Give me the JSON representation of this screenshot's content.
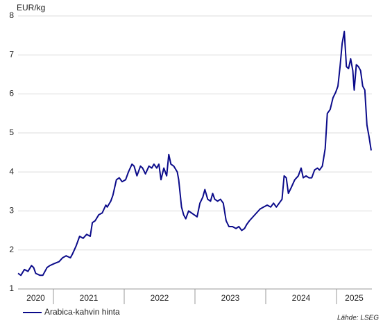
{
  "chart_data": {
    "type": "line",
    "y_label": "EUR/kg",
    "x": [
      2020.5,
      2020.54,
      2020.59,
      2020.64,
      2020.69,
      2020.72,
      2020.75,
      2020.81,
      2020.85,
      2020.91,
      2020.95,
      2021.01,
      2021.08,
      2021.13,
      2021.18,
      2021.24,
      2021.27,
      2021.32,
      2021.37,
      2021.42,
      2021.47,
      2021.52,
      2021.55,
      2021.59,
      2021.64,
      2021.69,
      2021.74,
      2021.76,
      2021.81,
      2021.84,
      2021.89,
      2021.93,
      2021.97,
      2022.02,
      2022.06,
      2022.11,
      2022.14,
      2022.18,
      2022.23,
      2022.26,
      2022.3,
      2022.35,
      2022.39,
      2022.42,
      2022.46,
      2022.49,
      2022.52,
      2022.56,
      2022.6,
      2022.63,
      2022.66,
      2022.7,
      2022.75,
      2022.77,
      2022.81,
      2022.84,
      2022.87,
      2022.91,
      2022.95,
      2022.99,
      2023.03,
      2023.07,
      2023.11,
      2023.14,
      2023.18,
      2023.22,
      2023.25,
      2023.28,
      2023.32,
      2023.36,
      2023.4,
      2023.44,
      2023.48,
      2023.53,
      2023.58,
      2023.62,
      2023.66,
      2023.7,
      2023.73,
      2023.77,
      2023.82,
      2023.87,
      2023.92,
      2023.97,
      2024.02,
      2024.07,
      2024.11,
      2024.15,
      2024.19,
      2024.23,
      2024.26,
      2024.29,
      2024.32,
      2024.36,
      2024.41,
      2024.46,
      2024.5,
      2024.53,
      2024.57,
      2024.61,
      2024.65,
      2024.69,
      2024.73,
      2024.76,
      2024.8,
      2024.84,
      2024.87,
      2024.91,
      2024.95,
      2024.99,
      2025.02,
      2025.05,
      2025.08,
      2025.11,
      2025.14,
      2025.17,
      2025.2,
      2025.23,
      2025.25,
      2025.28,
      2025.31,
      2025.34,
      2025.37,
      2025.4,
      2025.43,
      2025.46,
      2025.49
    ],
    "series": [
      {
        "name": "Arabica-kahvin hinta",
        "color": "#0b0b8a",
        "values": [
          1.4,
          1.35,
          1.5,
          1.45,
          1.6,
          1.55,
          1.4,
          1.35,
          1.35,
          1.55,
          1.6,
          1.65,
          1.7,
          1.8,
          1.85,
          1.8,
          1.9,
          2.1,
          2.35,
          2.3,
          2.4,
          2.35,
          2.7,
          2.75,
          2.9,
          2.95,
          3.15,
          3.1,
          3.25,
          3.4,
          3.8,
          3.85,
          3.75,
          3.8,
          4.0,
          4.2,
          4.15,
          3.9,
          4.15,
          4.1,
          3.95,
          4.15,
          4.1,
          4.2,
          4.1,
          4.2,
          3.8,
          4.1,
          3.9,
          4.45,
          4.2,
          4.15,
          4.0,
          3.8,
          3.1,
          2.9,
          2.8,
          3.0,
          2.95,
          2.9,
          2.85,
          3.2,
          3.35,
          3.55,
          3.3,
          3.25,
          3.45,
          3.3,
          3.25,
          3.3,
          3.2,
          2.75,
          2.6,
          2.6,
          2.55,
          2.6,
          2.5,
          2.55,
          2.65,
          2.75,
          2.85,
          2.95,
          3.05,
          3.1,
          3.15,
          3.1,
          3.2,
          3.1,
          3.2,
          3.3,
          3.9,
          3.85,
          3.45,
          3.6,
          3.8,
          3.9,
          4.1,
          3.85,
          3.9,
          3.85,
          3.85,
          4.05,
          4.1,
          4.05,
          4.15,
          4.6,
          5.5,
          5.6,
          5.9,
          6.05,
          6.2,
          6.7,
          7.3,
          7.6,
          6.7,
          6.65,
          6.9,
          6.6,
          6.1,
          6.75,
          6.7,
          6.6,
          6.2,
          6.1,
          5.2,
          4.9,
          4.55
        ]
      }
    ],
    "xlim": [
      2020.5,
      2025.5
    ],
    "year_boundaries": [
      2021,
      2022,
      2023,
      2024,
      2025
    ],
    "xticks": [
      {
        "value": 2020.75,
        "label": "2020"
      },
      {
        "value": 2021.5,
        "label": "2021"
      },
      {
        "value": 2022.5,
        "label": "2022"
      },
      {
        "value": 2023.5,
        "label": "2023"
      },
      {
        "value": 2024.5,
        "label": "2024"
      },
      {
        "value": 2025.25,
        "label": "2025"
      }
    ],
    "ylim": [
      1,
      8
    ],
    "yticks": [
      1,
      2,
      3,
      4,
      5,
      6,
      7,
      8
    ],
    "grid": true,
    "source": "Lähde: LSEG"
  }
}
